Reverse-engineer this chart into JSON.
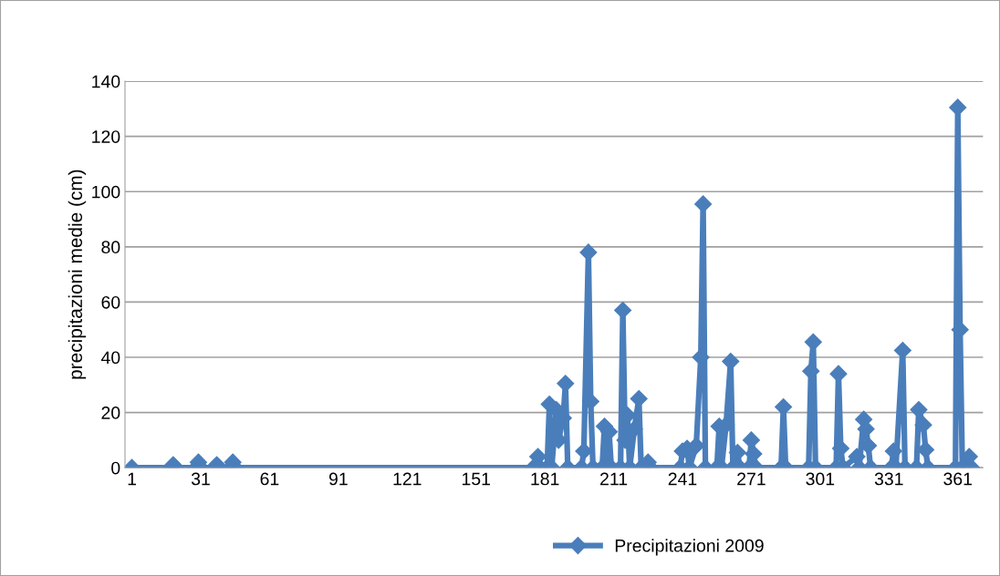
{
  "chart_data": {
    "type": "line",
    "ylabel": "precipitazioni medie (cm)",
    "x": [
      1,
      18,
      19,
      20,
      29,
      30,
      31,
      37,
      38,
      39,
      44,
      45,
      46,
      176,
      178,
      179,
      182,
      183,
      184,
      186,
      187,
      189,
      190,
      191,
      197,
      198,
      200,
      201,
      202,
      206,
      207,
      208,
      209,
      210,
      214,
      215,
      216,
      217,
      218,
      220,
      222,
      223,
      226,
      227,
      240,
      241,
      243,
      244,
      247,
      249,
      250,
      251,
      256,
      257,
      258,
      260,
      262,
      263,
      265,
      266,
      270,
      271,
      272,
      273,
      284,
      285,
      286,
      296,
      297,
      298,
      299,
      308,
      309,
      310,
      311,
      317,
      318,
      320,
      321,
      322,
      323,
      332,
      333,
      334,
      337,
      338,
      343,
      344,
      346,
      347,
      348,
      360,
      361,
      362,
      363,
      366,
      367
    ],
    "series": [
      {
        "name": "Precipitazioni 2009",
        "color": "#4a7ebb",
        "values": [
          0,
          0,
          1,
          0,
          0,
          2,
          0,
          0,
          1,
          0,
          0,
          2,
          0,
          0,
          4,
          0,
          0,
          23,
          0,
          21,
          10,
          18,
          30.5,
          0,
          0,
          6,
          78,
          24,
          0,
          0,
          15,
          0,
          13,
          0,
          0,
          57,
          10,
          19,
          0,
          14,
          25,
          0,
          2,
          0,
          0,
          6,
          7,
          0,
          8,
          40,
          95.5,
          0,
          0,
          15,
          0,
          15.5,
          38.5,
          0,
          5.5,
          0,
          0,
          10,
          5,
          0,
          0,
          22,
          0,
          0,
          35,
          45.5,
          0,
          0,
          34,
          7,
          0,
          4,
          0,
          17.5,
          14,
          8,
          0,
          0,
          6,
          0,
          42.5,
          0,
          0,
          21,
          15.5,
          6.5,
          0,
          0,
          130.5,
          50,
          0,
          4,
          0
        ]
      }
    ],
    "xlim": [
      -2,
      372
    ],
    "xticks": [
      1,
      31,
      61,
      91,
      121,
      151,
      181,
      211,
      241,
      271,
      301,
      331,
      361
    ],
    "ylim": [
      0,
      140
    ],
    "yticks": [
      0,
      20,
      40,
      60,
      80,
      100,
      120,
      140
    ],
    "grid": "y",
    "legend": "bottom",
    "marker": "diamond",
    "line_style": "solid"
  }
}
